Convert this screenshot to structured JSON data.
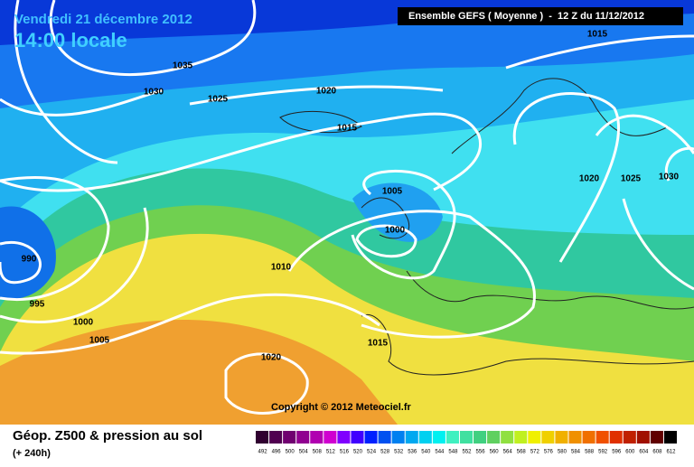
{
  "header": {
    "date": "Vendredi 21 décembre 2012",
    "time": "14:00 locale",
    "model": "Ensemble GEFS ( Moyenne )  -  12 Z du 11/12/2012"
  },
  "isobar_labels": [
    "1015",
    "1035",
    "1030",
    "1025",
    "1020",
    "1015",
    "1005",
    "1000",
    "990",
    "1010",
    "995",
    "1000",
    "1005",
    "1015",
    "1020",
    "1020",
    "1025",
    "1030"
  ],
  "copyright": "Copyright © 2012 Meteociel.fr",
  "footer": {
    "title": "Géop. Z500 & pression au sol",
    "lead": "(+ 240h)"
  },
  "scale": {
    "labels": [
      "492",
      "496",
      "500",
      "504",
      "508",
      "512",
      "516",
      "520",
      "524",
      "528",
      "532",
      "536",
      "540",
      "544",
      "548",
      "552",
      "556",
      "560",
      "564",
      "568",
      "572",
      "576",
      "580",
      "584",
      "588",
      "592",
      "596",
      "600",
      "604",
      "608",
      "612"
    ],
    "colors": [
      "#300030",
      "#500050",
      "#700070",
      "#900090",
      "#b000b0",
      "#d000d0",
      "#8000ff",
      "#4000ff",
      "#0020ff",
      "#0050f0",
      "#0080f0",
      "#00a8f0",
      "#00d0f0",
      "#00f0f0",
      "#40f0c0",
      "#40e0a0",
      "#40d080",
      "#60d060",
      "#90e040",
      "#c0f020",
      "#f0f000",
      "#f0d000",
      "#f0b000",
      "#f09000",
      "#f07000",
      "#f05000",
      "#e03000",
      "#c02000",
      "#a01000",
      "#600000",
      "#000000"
    ]
  }
}
